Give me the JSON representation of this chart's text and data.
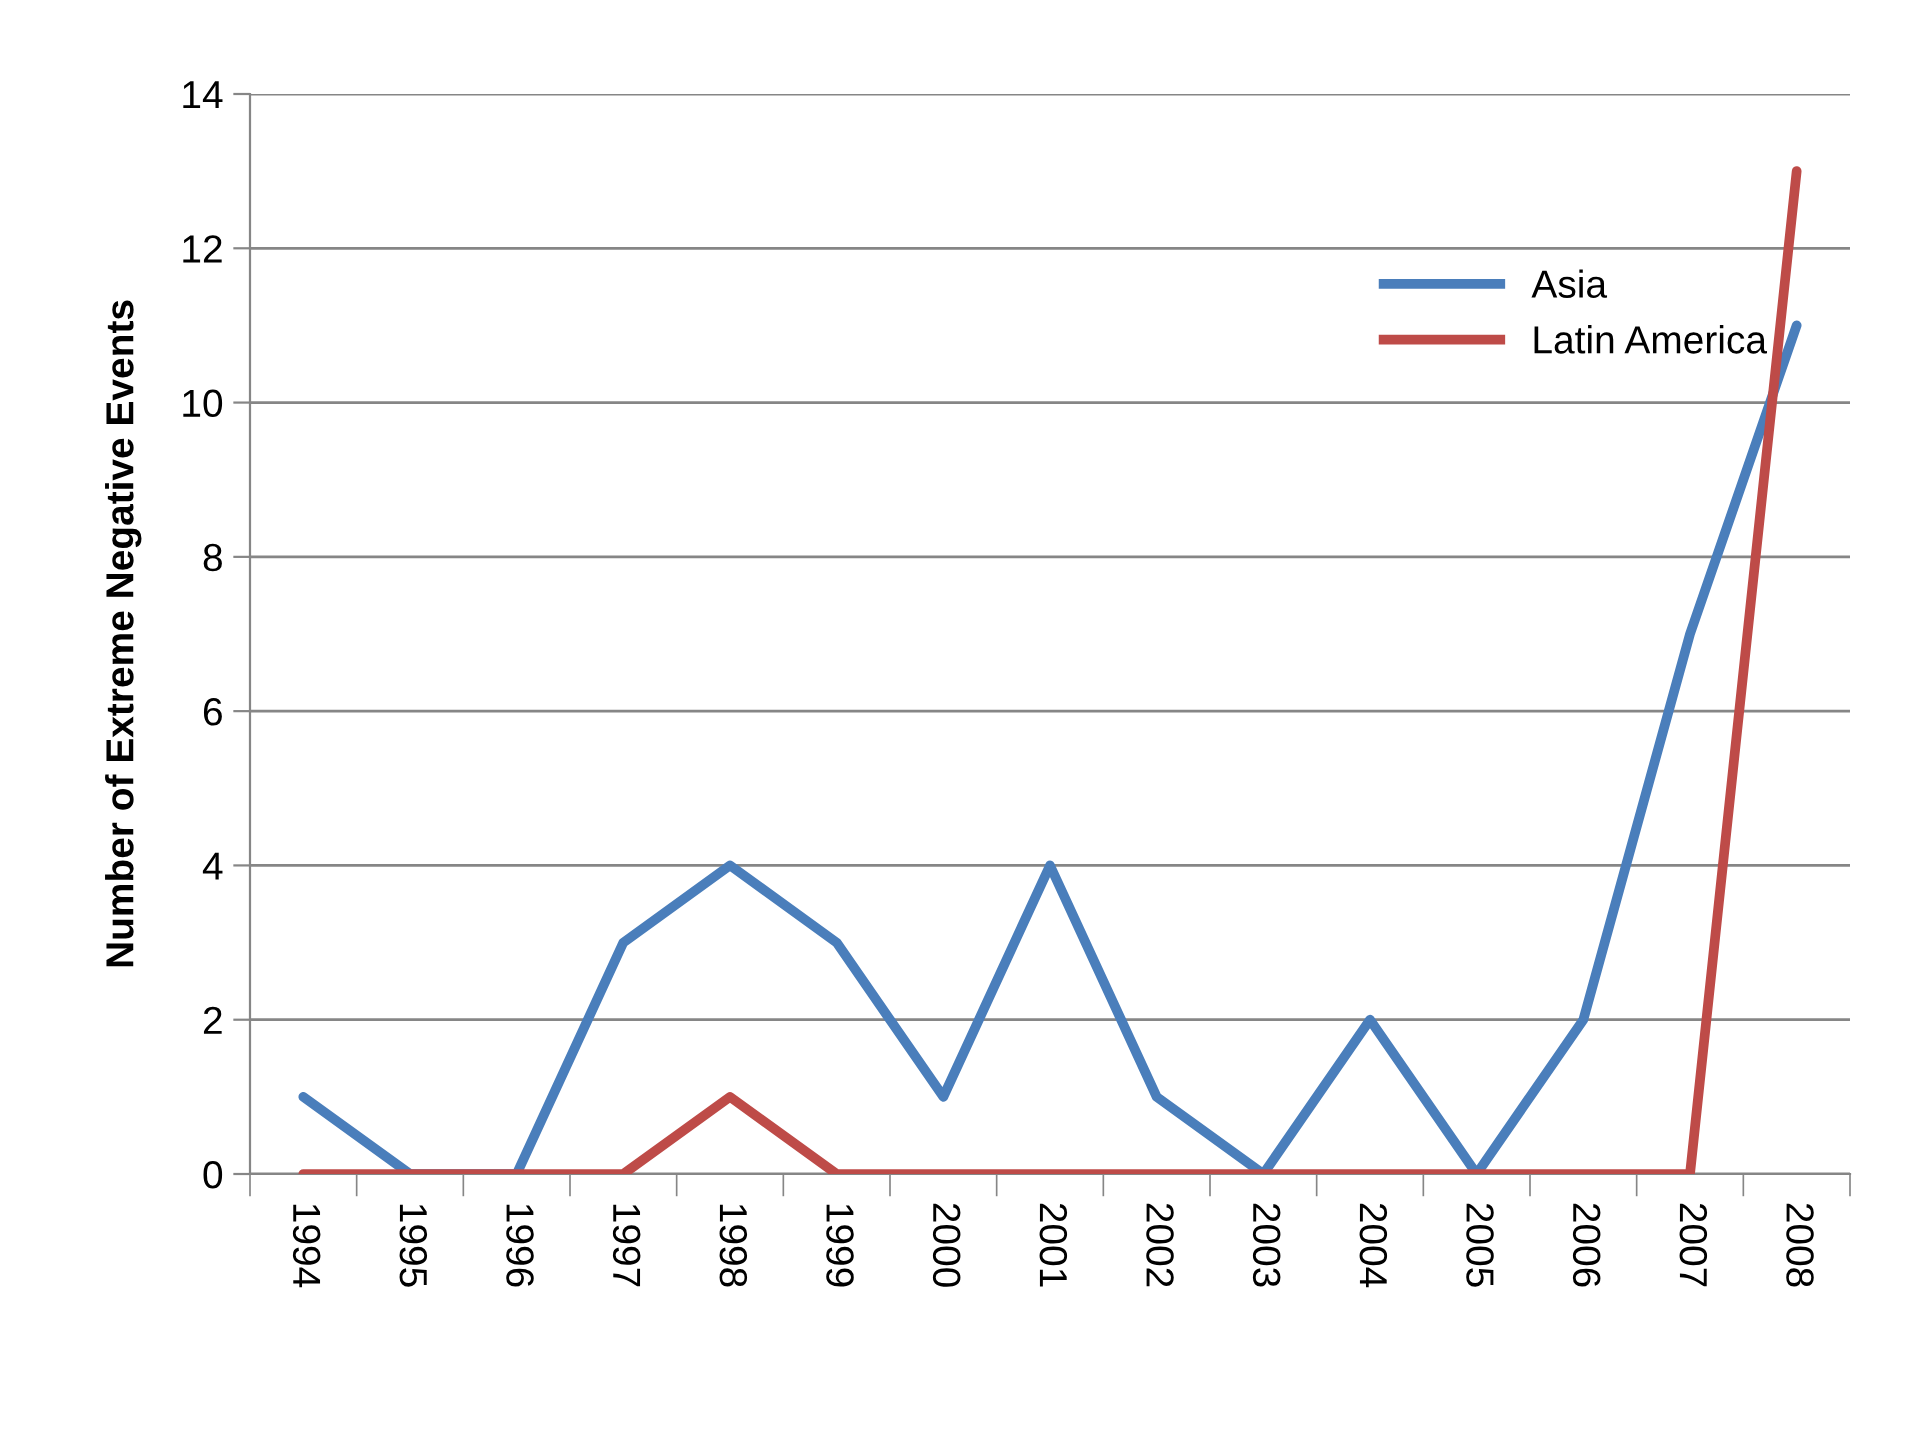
{
  "chart_data": {
    "type": "line",
    "ylabel": "Number of Extreme Negative Events",
    "categories": [
      "1994",
      "1995",
      "1996",
      "1997",
      "1998",
      "1999",
      "2000",
      "2001",
      "2002",
      "2003",
      "2004",
      "2005",
      "2006",
      "2007",
      "2008"
    ],
    "series": [
      {
        "name": "Asia",
        "color": "#4a7ebb",
        "values": [
          1,
          0,
          0,
          3,
          4,
          3,
          1,
          4,
          1,
          0,
          2,
          0,
          2,
          7,
          11
        ]
      },
      {
        "name": "Latin America",
        "color": "#be4b48",
        "values": [
          0,
          0,
          0,
          0,
          1,
          0,
          0,
          0,
          0,
          0,
          0,
          0,
          0,
          0,
          13
        ]
      }
    ],
    "ylim": [
      0,
      14
    ],
    "yticks": [
      0,
      2,
      4,
      6,
      8,
      10,
      12,
      14
    ],
    "grid": "y",
    "legend": "top right",
    "marker": "none",
    "line_style": "solid"
  }
}
